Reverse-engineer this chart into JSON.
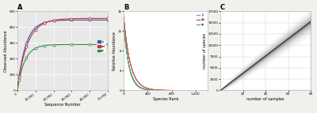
{
  "panel_A": {
    "title": "A",
    "xlabel": "Sequence Number",
    "ylabel": "Observed Abundance",
    "xlim": [
      0,
      50000
    ],
    "ylim": [
      0,
      500
    ],
    "xticks": [
      0,
      10000,
      20000,
      30000,
      40000,
      50000
    ],
    "xtick_labels": [
      "0",
      "10,000",
      "20,000",
      "30,000",
      "40,000",
      "50,000"
    ],
    "yticks": [
      0,
      100,
      200,
      300,
      400,
      500
    ],
    "panel_bg": "#e8e8e8",
    "grid_color": "#ffffff",
    "curves": [
      {
        "color": "#3355aa",
        "label": "jk",
        "asymptote": 445,
        "rate": 0.00022,
        "start_y": 5
      },
      {
        "color": "#cc3333",
        "label": "tbl",
        "asymptote": 455,
        "rate": 0.00018,
        "start_y": 15
      },
      {
        "color": "#338844",
        "label": "tp",
        "asymptote": 290,
        "rate": 0.00025,
        "start_y": 3
      }
    ],
    "legend_labels": [
      "jk",
      "tbl",
      "tp"
    ],
    "legend_colors": [
      "#3355aa",
      "#cc3333",
      "#338844"
    ]
  },
  "panel_B": {
    "title": "B",
    "xlabel": "Species Rank",
    "ylabel": "Relative Abundance",
    "xlim": [
      0,
      1400
    ],
    "ylim": [
      0,
      16
    ],
    "xticks": [
      0,
      400,
      800,
      1200
    ],
    "xtick_labels": [
      "0",
      "400",
      "800",
      "1,200"
    ],
    "yticks": [
      0,
      4,
      8,
      12,
      16
    ],
    "panel_bg": "#ffffff",
    "groups": [
      {
        "color": "#8899cc",
        "label": "jk",
        "max_ranks": [
          280,
          320,
          350,
          380,
          410,
          440,
          480,
          510
        ],
        "peak": 14.5,
        "decay": 0.012
      },
      {
        "color": "#cc5555",
        "label": "tbl",
        "max_ranks": [
          650,
          750,
          850,
          950,
          1050,
          1150,
          1250,
          1320
        ],
        "peak": 15.0,
        "decay": 0.009
      },
      {
        "color": "#55aa77",
        "label": "tp",
        "max_ranks": [
          300,
          340,
          370,
          400,
          430,
          460,
          490,
          520
        ],
        "peak": 13.5,
        "decay": 0.011
      }
    ]
  },
  "panel_C": {
    "title": "C",
    "xlabel": "number of samples",
    "ylabel": "number of species",
    "xlim": [
      0,
      80
    ],
    "ylim": [
      0,
      17500
    ],
    "xticks": [
      20,
      40,
      60,
      80
    ],
    "yticks": [
      0,
      2500,
      5000,
      7500,
      10000,
      12500,
      15000,
      17500
    ],
    "ytick_labels": [
      "0",
      "2500",
      "5000",
      "7500",
      "10000",
      "12500",
      "15000",
      "17500"
    ],
    "panel_bg": "#ffffff",
    "mean_color": "#1a1a1a",
    "band_colors": [
      "#aaaaaa",
      "#888888",
      "#666666",
      "#444444"
    ],
    "band_alphas": [
      0.15,
      0.2,
      0.25,
      0.3
    ]
  },
  "fig_bg": "#f0f0ec"
}
